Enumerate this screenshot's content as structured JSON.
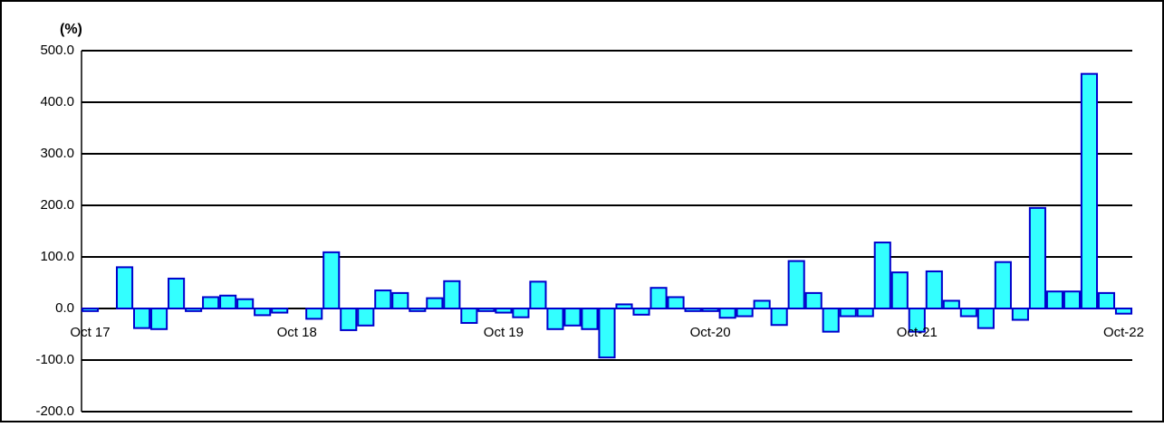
{
  "chart_data": {
    "type": "bar",
    "y_axis_label": "(%)",
    "categories": [
      "Oct 17",
      null,
      null,
      null,
      null,
      null,
      null,
      null,
      null,
      null,
      null,
      null,
      "Oct 18",
      null,
      null,
      null,
      null,
      null,
      null,
      null,
      null,
      null,
      null,
      null,
      "Oct 19",
      null,
      null,
      null,
      null,
      null,
      null,
      null,
      null,
      null,
      null,
      null,
      "Oct-20",
      null,
      null,
      null,
      null,
      null,
      null,
      null,
      null,
      null,
      null,
      null,
      "Oct-21",
      null,
      null,
      null,
      null,
      null,
      null,
      null,
      null,
      null,
      null,
      null,
      "Oct-22"
    ],
    "values": [
      -5,
      0,
      80,
      -38,
      -40,
      58,
      -5,
      22,
      25,
      18,
      -13,
      -8,
      0,
      -20,
      109,
      -42,
      -33,
      35,
      30,
      -5,
      20,
      53,
      -28,
      -5,
      -8,
      -17,
      52,
      -40,
      -33,
      -40,
      -95,
      8,
      -12,
      40,
      22,
      -5,
      -5,
      -18,
      -15,
      15,
      -32,
      92,
      30,
      -45,
      -15,
      -15,
      128,
      70,
      -45,
      72,
      15,
      -15,
      -38,
      90,
      -22,
      195,
      33,
      33,
      455,
      30,
      -10
    ],
    "color": "#33ffff",
    "edge_color": "#0000cc",
    "ylim": [
      -200,
      500
    ],
    "yticks": [
      {
        "value": -200,
        "label": "-200.0"
      },
      {
        "value": -100,
        "label": "-100.0"
      },
      {
        "value": 0,
        "label": "0.0"
      },
      {
        "value": 100,
        "label": "100.0"
      },
      {
        "value": 200,
        "label": "200.0"
      },
      {
        "value": 300,
        "label": "300.0"
      },
      {
        "value": 400,
        "label": "400.0"
      },
      {
        "value": 500,
        "label": "500.0"
      }
    ],
    "grid": true
  }
}
